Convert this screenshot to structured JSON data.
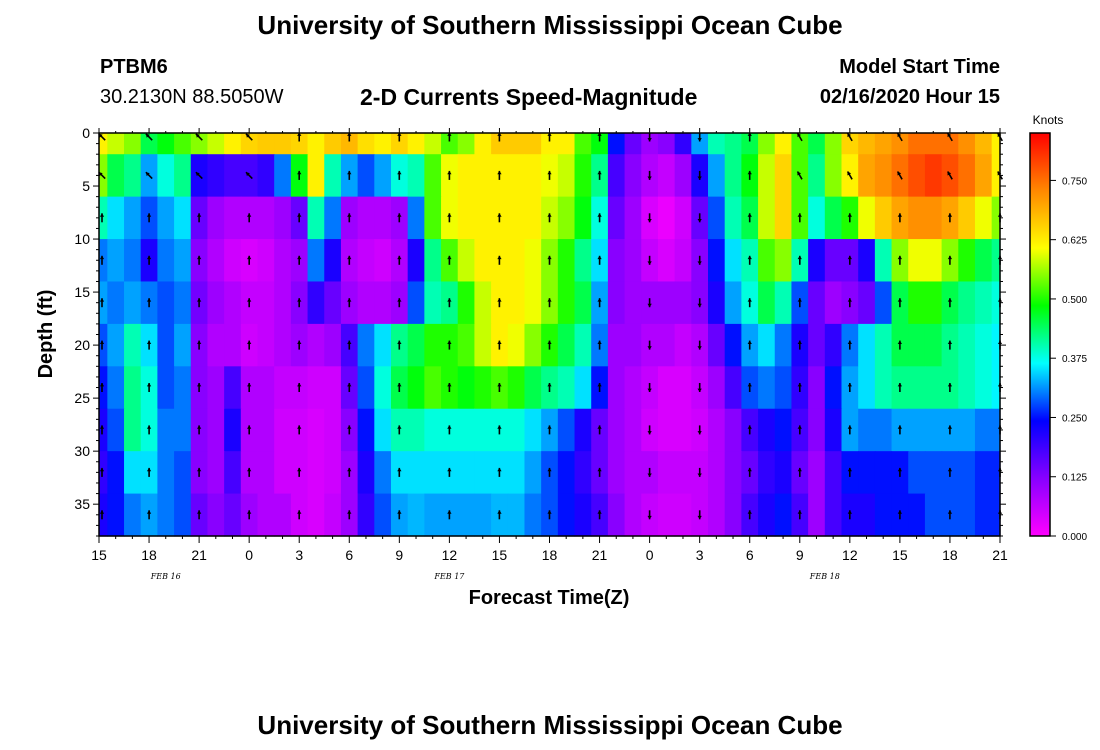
{
  "header": {
    "title": "University of Southern Mississippi Ocean Cube",
    "station_id": "PTBM6",
    "station_location": "30.2130N 88.5050W",
    "subtitle": "2-D Currents Speed-Magnitude",
    "model_start_label": "Model Start Time",
    "model_start_value": "02/16/2020 Hour 15"
  },
  "footer": {
    "title": "University of Southern Mississippi Ocean Cube"
  },
  "chart_data": {
    "type": "heatmap",
    "xlabel": "Forecast Time(Z)",
    "ylabel": "Depth (ft)",
    "x_tick_labels": [
      "15",
      "18",
      "21",
      "0",
      "3",
      "6",
      "9",
      "12",
      "15",
      "18",
      "21",
      "0",
      "3",
      "6",
      "9",
      "12",
      "15",
      "18",
      "21"
    ],
    "x_range_hours": [
      0,
      54
    ],
    "y_ticks": [
      0,
      5,
      10,
      15,
      20,
      25,
      30,
      35
    ],
    "ylim": [
      0,
      38
    ],
    "y_inverted": true,
    "date_labels": [
      {
        "hour": 4,
        "label": "FEB 16"
      },
      {
        "hour": 21,
        "label": "FEB 17"
      },
      {
        "hour": 43.5,
        "label": "FEB 18"
      }
    ],
    "colorbar": {
      "title": "Knots",
      "min": 0.0,
      "max": 0.85,
      "tick_labels": [
        "0.000",
        "0.125",
        "0.250",
        "0.375",
        "0.500",
        "0.625",
        "0.750"
      ],
      "tick_values": [
        0.0,
        0.125,
        0.25,
        0.375,
        0.5,
        0.625,
        0.75
      ],
      "colors": [
        "#ff00ff",
        "#8800ff",
        "#0000ff",
        "#00ffff",
        "#00ff00",
        "#ffff00",
        "#ff8800",
        "#ff0000"
      ]
    },
    "speed_grid": {
      "depths": [
        0,
        4,
        8,
        12,
        16,
        20,
        24,
        28,
        32,
        36
      ],
      "hours": [
        0,
        1,
        2,
        3,
        4,
        5,
        6,
        7,
        8,
        9,
        10,
        11,
        12,
        13,
        14,
        15,
        16,
        17,
        18,
        19,
        20,
        21,
        22,
        23,
        24,
        25,
        26,
        27,
        28,
        29,
        30,
        31,
        32,
        33,
        34,
        35,
        36,
        37,
        38,
        39,
        40,
        41,
        42,
        43,
        44,
        45,
        46,
        47,
        48,
        49,
        50,
        51,
        52,
        53,
        54
      ],
      "values": [
        [
          0.62,
          0.58,
          0.55,
          0.45,
          0.48,
          0.52,
          0.55,
          0.58,
          0.62,
          0.65,
          0.66,
          0.66,
          0.65,
          0.62,
          0.66,
          0.68,
          0.64,
          0.62,
          0.65,
          0.62,
          0.58,
          0.52,
          0.55,
          0.62,
          0.66,
          0.66,
          0.66,
          0.62,
          0.62,
          0.52,
          0.48,
          0.25,
          0.15,
          0.1,
          0.12,
          0.2,
          0.32,
          0.4,
          0.42,
          0.45,
          0.55,
          0.62,
          0.52,
          0.45,
          0.55,
          0.65,
          0.68,
          0.7,
          0.72,
          0.75,
          0.75,
          0.75,
          0.72,
          0.68,
          0.62
        ],
        [
          0.55,
          0.45,
          0.42,
          0.32,
          0.38,
          0.42,
          0.22,
          0.2,
          0.18,
          0.18,
          0.2,
          0.3,
          0.48,
          0.62,
          0.4,
          0.32,
          0.28,
          0.32,
          0.38,
          0.4,
          0.52,
          0.6,
          0.62,
          0.62,
          0.62,
          0.62,
          0.62,
          0.6,
          0.58,
          0.5,
          0.42,
          0.18,
          0.12,
          0.08,
          0.06,
          0.1,
          0.22,
          0.32,
          0.42,
          0.48,
          0.58,
          0.65,
          0.52,
          0.42,
          0.55,
          0.62,
          0.7,
          0.72,
          0.75,
          0.78,
          0.8,
          0.78,
          0.75,
          0.7,
          0.62
        ],
        [
          0.4,
          0.35,
          0.32,
          0.28,
          0.32,
          0.35,
          0.15,
          0.1,
          0.08,
          0.08,
          0.08,
          0.1,
          0.15,
          0.4,
          0.3,
          0.1,
          0.08,
          0.08,
          0.1,
          0.3,
          0.52,
          0.6,
          0.62,
          0.62,
          0.62,
          0.62,
          0.62,
          0.58,
          0.55,
          0.48,
          0.38,
          0.15,
          0.1,
          0.04,
          0.02,
          0.05,
          0.15,
          0.28,
          0.4,
          0.45,
          0.58,
          0.65,
          0.52,
          0.38,
          0.45,
          0.5,
          0.6,
          0.66,
          0.7,
          0.72,
          0.72,
          0.7,
          0.66,
          0.6,
          0.55
        ],
        [
          0.3,
          0.32,
          0.3,
          0.22,
          0.3,
          0.32,
          0.12,
          0.08,
          0.05,
          0.04,
          0.05,
          0.08,
          0.1,
          0.3,
          0.22,
          0.08,
          0.06,
          0.05,
          0.08,
          0.22,
          0.42,
          0.52,
          0.58,
          0.62,
          0.62,
          0.62,
          0.6,
          0.55,
          0.5,
          0.42,
          0.35,
          0.12,
          0.1,
          0.06,
          0.04,
          0.06,
          0.12,
          0.25,
          0.35,
          0.4,
          0.52,
          0.55,
          0.4,
          0.22,
          0.15,
          0.15,
          0.22,
          0.4,
          0.55,
          0.6,
          0.6,
          0.55,
          0.5,
          0.45,
          0.42
        ],
        [
          0.32,
          0.3,
          0.32,
          0.3,
          0.28,
          0.3,
          0.14,
          0.1,
          0.08,
          0.06,
          0.06,
          0.08,
          0.12,
          0.2,
          0.15,
          0.1,
          0.08,
          0.08,
          0.1,
          0.28,
          0.4,
          0.42,
          0.5,
          0.58,
          0.62,
          0.62,
          0.6,
          0.55,
          0.5,
          0.45,
          0.32,
          0.12,
          0.1,
          0.1,
          0.1,
          0.1,
          0.12,
          0.22,
          0.32,
          0.38,
          0.45,
          0.4,
          0.28,
          0.15,
          0.1,
          0.12,
          0.15,
          0.28,
          0.45,
          0.5,
          0.5,
          0.45,
          0.42,
          0.4,
          0.38
        ],
        [
          0.28,
          0.32,
          0.4,
          0.35,
          0.28,
          0.32,
          0.12,
          0.08,
          0.08,
          0.05,
          0.06,
          0.08,
          0.1,
          0.08,
          0.1,
          0.18,
          0.3,
          0.35,
          0.42,
          0.45,
          0.5,
          0.5,
          0.52,
          0.58,
          0.62,
          0.6,
          0.55,
          0.5,
          0.45,
          0.4,
          0.3,
          0.1,
          0.1,
          0.08,
          0.08,
          0.06,
          0.08,
          0.15,
          0.25,
          0.32,
          0.35,
          0.3,
          0.22,
          0.15,
          0.2,
          0.3,
          0.35,
          0.4,
          0.45,
          0.45,
          0.45,
          0.42,
          0.4,
          0.38,
          0.36
        ],
        [
          0.25,
          0.3,
          0.42,
          0.38,
          0.28,
          0.3,
          0.12,
          0.1,
          0.18,
          0.08,
          0.08,
          0.06,
          0.06,
          0.05,
          0.05,
          0.15,
          0.28,
          0.38,
          0.45,
          0.48,
          0.52,
          0.5,
          0.48,
          0.5,
          0.52,
          0.5,
          0.45,
          0.42,
          0.4,
          0.35,
          0.25,
          0.1,
          0.08,
          0.06,
          0.04,
          0.04,
          0.06,
          0.1,
          0.18,
          0.28,
          0.3,
          0.28,
          0.2,
          0.12,
          0.25,
          0.32,
          0.35,
          0.4,
          0.42,
          0.42,
          0.42,
          0.42,
          0.4,
          0.38,
          0.36
        ],
        [
          0.22,
          0.28,
          0.42,
          0.38,
          0.3,
          0.3,
          0.12,
          0.1,
          0.22,
          0.08,
          0.08,
          0.05,
          0.05,
          0.04,
          0.05,
          0.12,
          0.25,
          0.35,
          0.4,
          0.4,
          0.38,
          0.38,
          0.38,
          0.38,
          0.38,
          0.38,
          0.35,
          0.32,
          0.28,
          0.22,
          0.15,
          0.1,
          0.08,
          0.05,
          0.04,
          0.04,
          0.05,
          0.08,
          0.12,
          0.18,
          0.22,
          0.25,
          0.18,
          0.12,
          0.22,
          0.32,
          0.3,
          0.3,
          0.32,
          0.32,
          0.32,
          0.32,
          0.32,
          0.3,
          0.3
        ],
        [
          0.2,
          0.25,
          0.35,
          0.35,
          0.3,
          0.28,
          0.12,
          0.1,
          0.18,
          0.08,
          0.08,
          0.05,
          0.05,
          0.04,
          0.05,
          0.1,
          0.22,
          0.3,
          0.35,
          0.35,
          0.35,
          0.35,
          0.35,
          0.35,
          0.35,
          0.35,
          0.32,
          0.28,
          0.25,
          0.2,
          0.15,
          0.1,
          0.08,
          0.08,
          0.06,
          0.06,
          0.06,
          0.08,
          0.12,
          0.15,
          0.2,
          0.22,
          0.15,
          0.1,
          0.18,
          0.25,
          0.25,
          0.25,
          0.25,
          0.28,
          0.28,
          0.28,
          0.28,
          0.26,
          0.26
        ],
        [
          0.22,
          0.25,
          0.3,
          0.32,
          0.3,
          0.28,
          0.15,
          0.12,
          0.15,
          0.1,
          0.08,
          0.08,
          0.05,
          0.04,
          0.06,
          0.1,
          0.2,
          0.28,
          0.32,
          0.33,
          0.32,
          0.32,
          0.32,
          0.32,
          0.33,
          0.33,
          0.3,
          0.28,
          0.25,
          0.22,
          0.18,
          0.12,
          0.08,
          0.06,
          0.05,
          0.05,
          0.06,
          0.08,
          0.12,
          0.18,
          0.22,
          0.25,
          0.18,
          0.1,
          0.18,
          0.22,
          0.22,
          0.25,
          0.25,
          0.25,
          0.28,
          0.28,
          0.28,
          0.26,
          0.26
        ]
      ]
    }
  }
}
